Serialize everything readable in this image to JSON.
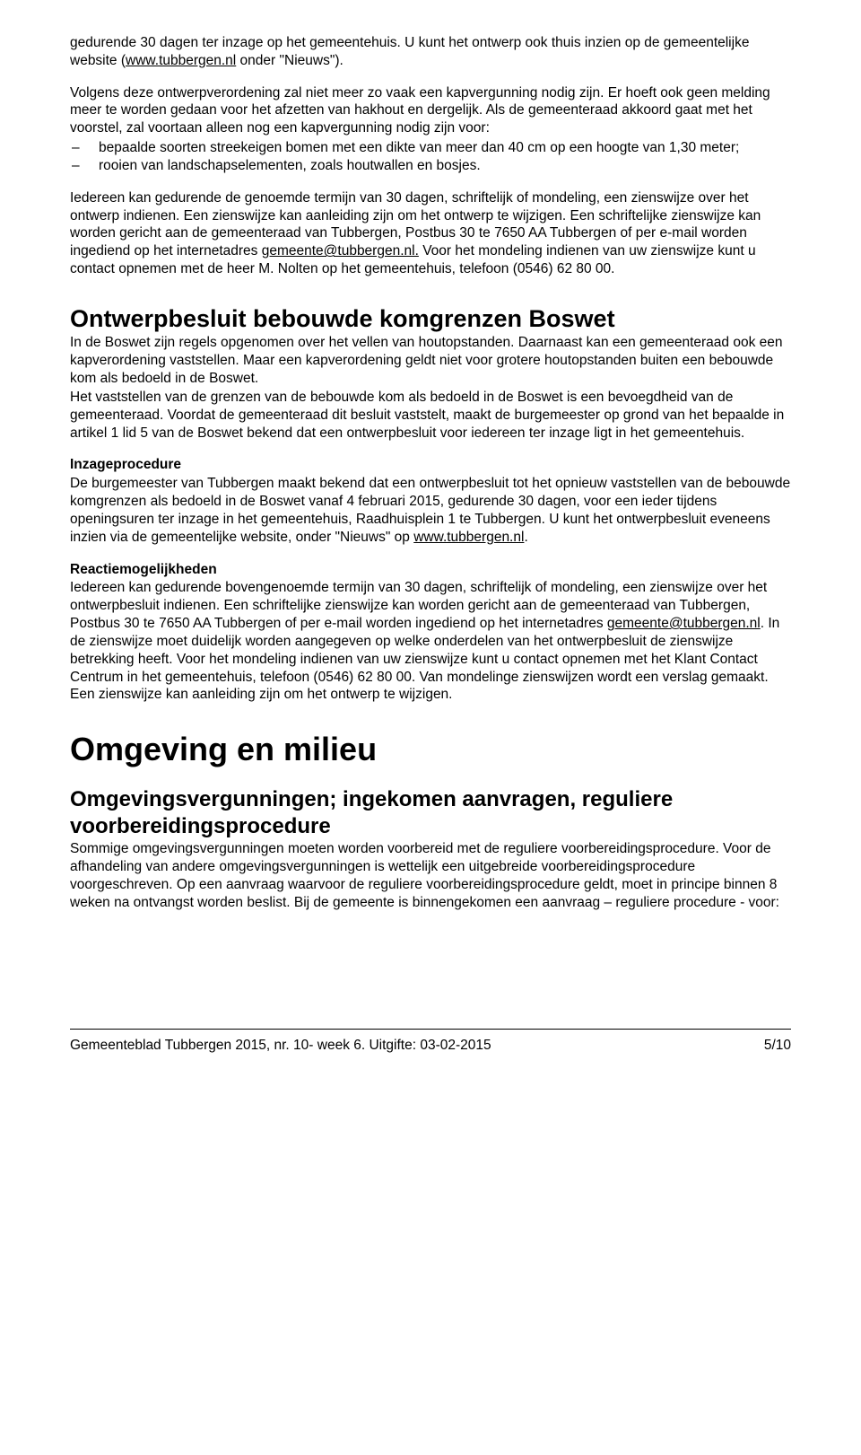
{
  "intro": {
    "p1a": "gedurende 30 dagen ter inzage op het gemeentehuis. U kunt het ontwerp ook thuis inzien op de gemeentelijke website (",
    "p1_link": "www.tubbergen.nl",
    "p1b": " onder \"Nieuws\").",
    "p2": "Volgens deze ontwerpverordening zal niet meer zo vaak een kapvergunning nodig zijn. Er hoeft ook geen melding meer te worden gedaan voor het afzetten van hakhout en dergelijk. Als de gemeenteraad akkoord gaat met het voorstel, zal voortaan alleen nog een kapvergunning nodig zijn voor:",
    "bullets": [
      "bepaalde soorten streekeigen bomen met een dikte van meer dan 40 cm op een hoogte van 1,30 meter;",
      "rooien van landschapselementen, zoals houtwallen en bosjes."
    ],
    "p3a": "Iedereen kan gedurende de genoemde termijn van 30 dagen, schriftelijk of mondeling, een zienswijze over het ontwerp indienen. Een zienswijze kan aanleiding zijn om het ontwerp te wijzigen. Een schriftelijke zienswijze kan worden gericht aan de gemeenteraad van Tubbergen, Postbus 30 te 7650 AA  Tubbergen of per e-mail worden ingediend op het internetadres ",
    "p3_link": "gemeente@tubbergen.nl.",
    "p3b": " Voor het mondeling indienen van uw zienswijze kunt u contact opnemen met de heer M. Nolten op het gemeentehuis, telefoon (0546) 62 80 00."
  },
  "boswet": {
    "title": "Ontwerpbesluit bebouwde komgrenzen Boswet",
    "p1": "In de Boswet zijn regels opgenomen over het vellen van houtopstanden. Daarnaast kan een gemeenteraad ook een kapverordening vaststellen. Maar een kapverordening geldt niet voor grotere houtopstanden buiten een bebouwde kom als bedoeld in de Boswet.",
    "p2": "Het vaststellen van de grenzen van de bebouwde kom als bedoeld in de Boswet is een bevoegdheid van de gemeenteraad. Voordat de gemeenteraad dit besluit vaststelt, maakt de burgemeester op grond van het bepaalde in artikel 1 lid 5 van de Boswet bekend dat een ontwerpbesluit voor iedereen ter inzage ligt in het gemeentehuis.",
    "inzage_head": "Inzageprocedure",
    "inzage_a": "De burgemeester van Tubbergen maakt bekend dat een ontwerpbesluit tot het opnieuw vaststellen van de bebouwde komgrenzen als bedoeld in de Boswet vanaf 4 februari 2015, gedurende 30 dagen, voor een ieder tijdens openingsuren ter inzage in het gemeentehuis, Raadhuisplein 1 te Tubbergen. U kunt het ontwerpbesluit eveneens inzien via de gemeentelijke website, onder \"Nieuws\" op  ",
    "inzage_link": "www.tubbergen.nl",
    "inzage_b": ".",
    "reactie_head": "Reactiemogelijkheden",
    "reactie_a": "Iedereen kan gedurende bovengenoemde termijn van 30 dagen, schriftelijk of mondeling, een zienswijze over het ontwerpbesluit indienen. Een schriftelijke zienswijze kan worden gericht aan de gemeenteraad van Tubbergen, Postbus 30 te 7650 AA  Tubbergen of per e-mail worden ingediend op het internetadres ",
    "reactie_link": "gemeente@tubbergen.nl",
    "reactie_b": ". In de zienswijze moet duidelijk worden aangegeven op welke onderdelen van het ontwerpbesluit de zienswijze betrekking heeft. Voor het mondeling indienen van uw zienswijze kunt u contact opnemen met het Klant Contact Centrum in het gemeentehuis, telefoon (0546) 62 80 00. Van mondelinge zienswijzen wordt een verslag gemaakt. Een zienswijze kan aanleiding zijn om het ontwerp te wijzigen."
  },
  "omgeving": {
    "title": "Omgeving en milieu",
    "sub_title": "Omgevingsvergunningen; ingekomen aanvragen, reguliere voorbereidingsprocedure",
    "p1": "Sommige omgevingsvergunningen moeten worden voorbereid met de reguliere voorbereidingsprocedure. Voor de afhandeling van andere omgevingsvergunningen is wettelijk een uitgebreide voorbereidingsprocedure voorgeschreven. Op een aanvraag waarvoor de reguliere voorbereidingsprocedure geldt, moet in principe binnen 8 weken na ontvangst worden beslist. Bij de gemeente is binnengekomen een aanvraag – reguliere procedure - voor:"
  },
  "footer": {
    "left": "Gemeenteblad Tubbergen 2015, nr. 10- week 6. Uitgifte: 03-02-2015",
    "right": "5/10"
  }
}
